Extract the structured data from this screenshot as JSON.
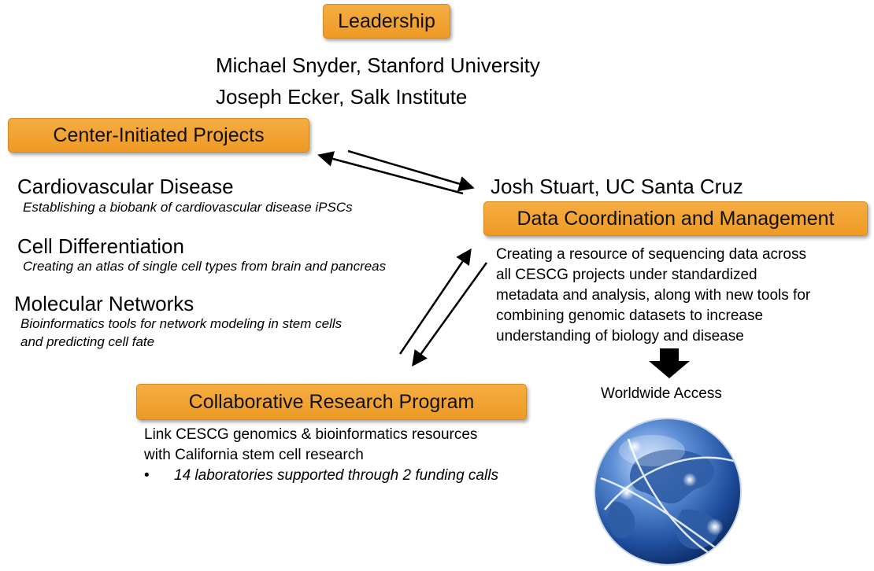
{
  "leadership": {
    "title": "Leadership",
    "people": [
      "Michael Snyder, Stanford University",
      "Joseph Ecker, Salk Institute"
    ]
  },
  "center_projects": {
    "title": "Center-Initiated Projects",
    "items": [
      {
        "name": "Cardiovascular Disease",
        "desc": "Establishing a biobank of cardiovascular disease iPSCs"
      },
      {
        "name": "Cell Differentiation",
        "desc": "Creating an atlas of single cell types from brain and pancreas"
      },
      {
        "name": "Molecular Networks",
        "desc_lines": [
          "Bioinformatics tools for network modeling in stem cells",
          "and predicting cell fate"
        ]
      }
    ]
  },
  "data_coordination": {
    "person": "Josh Stuart, UC Santa Cruz",
    "title": "Data Coordination and Management",
    "desc_lines": [
      "Creating a resource of sequencing data across",
      "all CESCG projects under standardized",
      "metadata and analysis, along with new tools for",
      "combining genomic datasets to increase",
      "understanding of biology and disease"
    ],
    "access_label": "Worldwide Access"
  },
  "collaborative": {
    "title": "Collaborative Research Program",
    "desc_lines": [
      "Link CESCG genomics & bioinformatics resources",
      "with California stem cell research"
    ],
    "bullet": "•",
    "bullet_text": "14 laboratories supported through 2 funding calls"
  },
  "colors": {
    "box_fill": "#f0a030",
    "globe": "#2a5fae"
  },
  "icons": {
    "down_arrow": "down-arrow-icon",
    "globe": "globe-icon"
  }
}
